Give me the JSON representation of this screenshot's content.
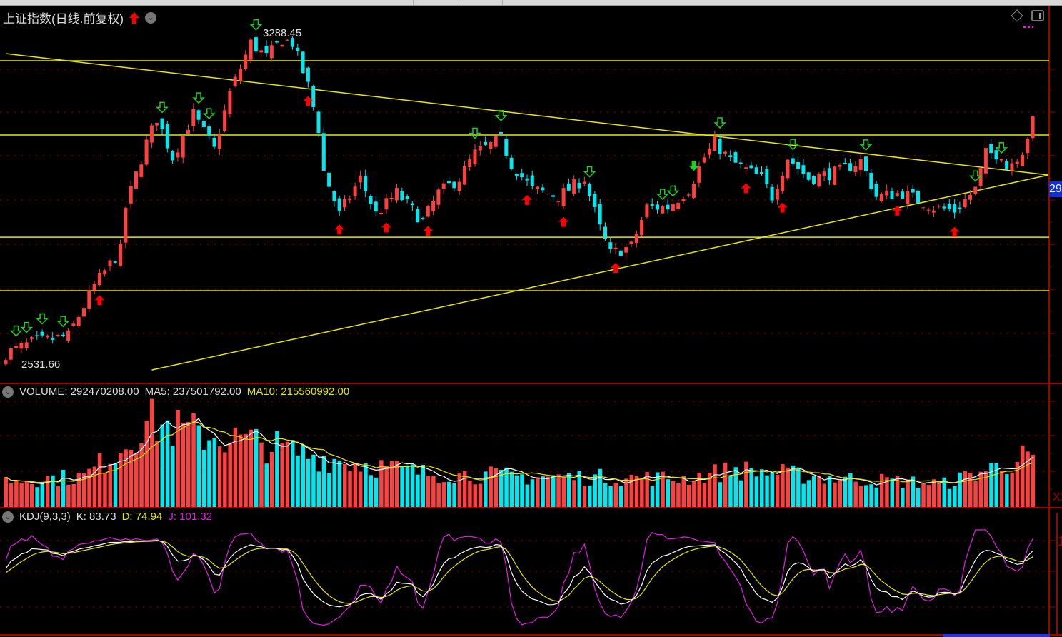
{
  "header": {
    "title": "上证指数(日线.前复权)",
    "signal_icon": "red-up-arrow-icon",
    "menu_icon": "chevron-down-icon"
  },
  "price_labels": {
    "high": "3288.45",
    "low": "2531.66",
    "current_tag": "29"
  },
  "right_axis": {
    "volume_unit": "X1",
    "kdj_tick": "1"
  },
  "volume": {
    "label": "VOLUME: 292470208.00",
    "ma5": "MA5: 237501792.00",
    "ma10": "MA10: 215560992.00"
  },
  "kdj": {
    "label": "KDJ(9,3,3)",
    "k": "K: 83.73",
    "d": "D: 74.94",
    "j": "J: 101.32"
  },
  "colors": {
    "up": "#ff4040",
    "down": "#00e8f0",
    "support_lines": "#e8e800",
    "grid": "#a00000",
    "k": "#ffffff",
    "d": "#e8e800",
    "j": "#e020e0",
    "buy_signal": "#ff0000",
    "sell_signal": "#20d020"
  },
  "chart_data": {
    "type": "candlestick",
    "candle_count": 198,
    "ylim": [
      2531.66,
      3288.45
    ],
    "high_point": 3288.45,
    "low_point": 2531.66,
    "horizontal_lines": [
      3226.5,
      3056.8,
      2823.5,
      2701.2
    ],
    "trend_lines": [
      {
        "from": {
          "i": 0,
          "p": 3242.8
        },
        "to": {
          "i": 200,
          "p": 2965.5
        }
      },
      {
        "from": {
          "i": 28,
          "p": 2520
        },
        "to": {
          "i": 200,
          "p": 2965.5
        }
      }
    ],
    "close_path": [
      {
        "i": 0,
        "p": 2557.8
      },
      {
        "i": 5,
        "p": 2582
      },
      {
        "i": 12,
        "p": 2598
      },
      {
        "i": 17,
        "p": 2712.7
      },
      {
        "i": 22,
        "p": 2794
      },
      {
        "i": 23,
        "p": 2892
      },
      {
        "i": 27,
        "p": 3039
      },
      {
        "i": 29,
        "p": 3096
      },
      {
        "i": 32,
        "p": 3006
      },
      {
        "i": 36,
        "p": 3104
      },
      {
        "i": 40,
        "p": 3022.6
      },
      {
        "i": 43,
        "p": 3153
      },
      {
        "i": 47,
        "p": 3267
      },
      {
        "i": 50,
        "p": 3234.6
      },
      {
        "i": 53,
        "p": 3275
      },
      {
        "i": 55,
        "p": 3267
      },
      {
        "i": 58,
        "p": 3169
      },
      {
        "i": 60,
        "p": 3071.5
      },
      {
        "i": 61,
        "p": 2973.7
      },
      {
        "i": 64,
        "p": 2875.8
      },
      {
        "i": 68,
        "p": 2957.4
      },
      {
        "i": 71,
        "p": 2875.8
      },
      {
        "i": 75,
        "p": 2924.7
      },
      {
        "i": 80,
        "p": 2859.5
      },
      {
        "i": 83,
        "p": 2924.7
      },
      {
        "i": 87,
        "p": 2957.4
      },
      {
        "i": 90,
        "p": 3014.4
      },
      {
        "i": 95,
        "p": 3047
      },
      {
        "i": 97,
        "p": 2990
      },
      {
        "i": 101,
        "p": 2932.9
      },
      {
        "i": 106,
        "p": 2916.6
      },
      {
        "i": 111,
        "p": 2957.4
      },
      {
        "i": 114,
        "p": 2843
      },
      {
        "i": 116,
        "p": 2786
      },
      {
        "i": 120,
        "p": 2802.4
      },
      {
        "i": 123,
        "p": 2892
      },
      {
        "i": 127,
        "p": 2892
      },
      {
        "i": 131,
        "p": 2932.9
      },
      {
        "i": 134,
        "p": 3006
      },
      {
        "i": 136,
        "p": 3039
      },
      {
        "i": 139,
        "p": 2998
      },
      {
        "i": 145,
        "p": 2957.4
      },
      {
        "i": 147,
        "p": 2916.6
      },
      {
        "i": 150,
        "p": 3006
      },
      {
        "i": 154,
        "p": 2957.4
      },
      {
        "i": 160,
        "p": 2973.7
      },
      {
        "i": 164,
        "p": 2998
      },
      {
        "i": 167,
        "p": 2916.6
      },
      {
        "i": 172,
        "p": 2924.7
      },
      {
        "i": 178,
        "p": 2892
      },
      {
        "i": 182,
        "p": 2884
      },
      {
        "i": 186,
        "p": 2932.9
      },
      {
        "i": 188,
        "p": 3014.4
      },
      {
        "i": 191,
        "p": 3014.4
      },
      {
        "i": 192,
        "p": 2981.8
      },
      {
        "i": 195,
        "p": 3022.6
      },
      {
        "i": 197,
        "p": 3087.8
      }
    ],
    "volume_path": [
      {
        "i": 0,
        "v": 150000000
      },
      {
        "i": 15,
        "v": 170000000
      },
      {
        "i": 22,
        "v": 330000000
      },
      {
        "i": 27,
        "v": 480000000
      },
      {
        "i": 35,
        "v": 420000000
      },
      {
        "i": 48,
        "v": 360000000
      },
      {
        "i": 60,
        "v": 280000000
      },
      {
        "i": 80,
        "v": 190000000
      },
      {
        "i": 100,
        "v": 170000000
      },
      {
        "i": 130,
        "v": 160000000
      },
      {
        "i": 140,
        "v": 210000000
      },
      {
        "i": 160,
        "v": 160000000
      },
      {
        "i": 180,
        "v": 130000000
      },
      {
        "i": 197,
        "v": 292470208
      }
    ],
    "volume_ylim": [
      0,
      600000000
    ],
    "kdj_ylim": [
      -30,
      115
    ],
    "buy_signals": [
      18,
      58,
      64,
      73,
      81,
      100,
      107,
      117,
      142,
      149,
      171,
      182
    ],
    "sell_signals": [
      2,
      4,
      7,
      11,
      30,
      37,
      39,
      48,
      90,
      95,
      112,
      126,
      128,
      137,
      151,
      165,
      186,
      191
    ],
    "strong_sell_signals": [
      132
    ]
  }
}
